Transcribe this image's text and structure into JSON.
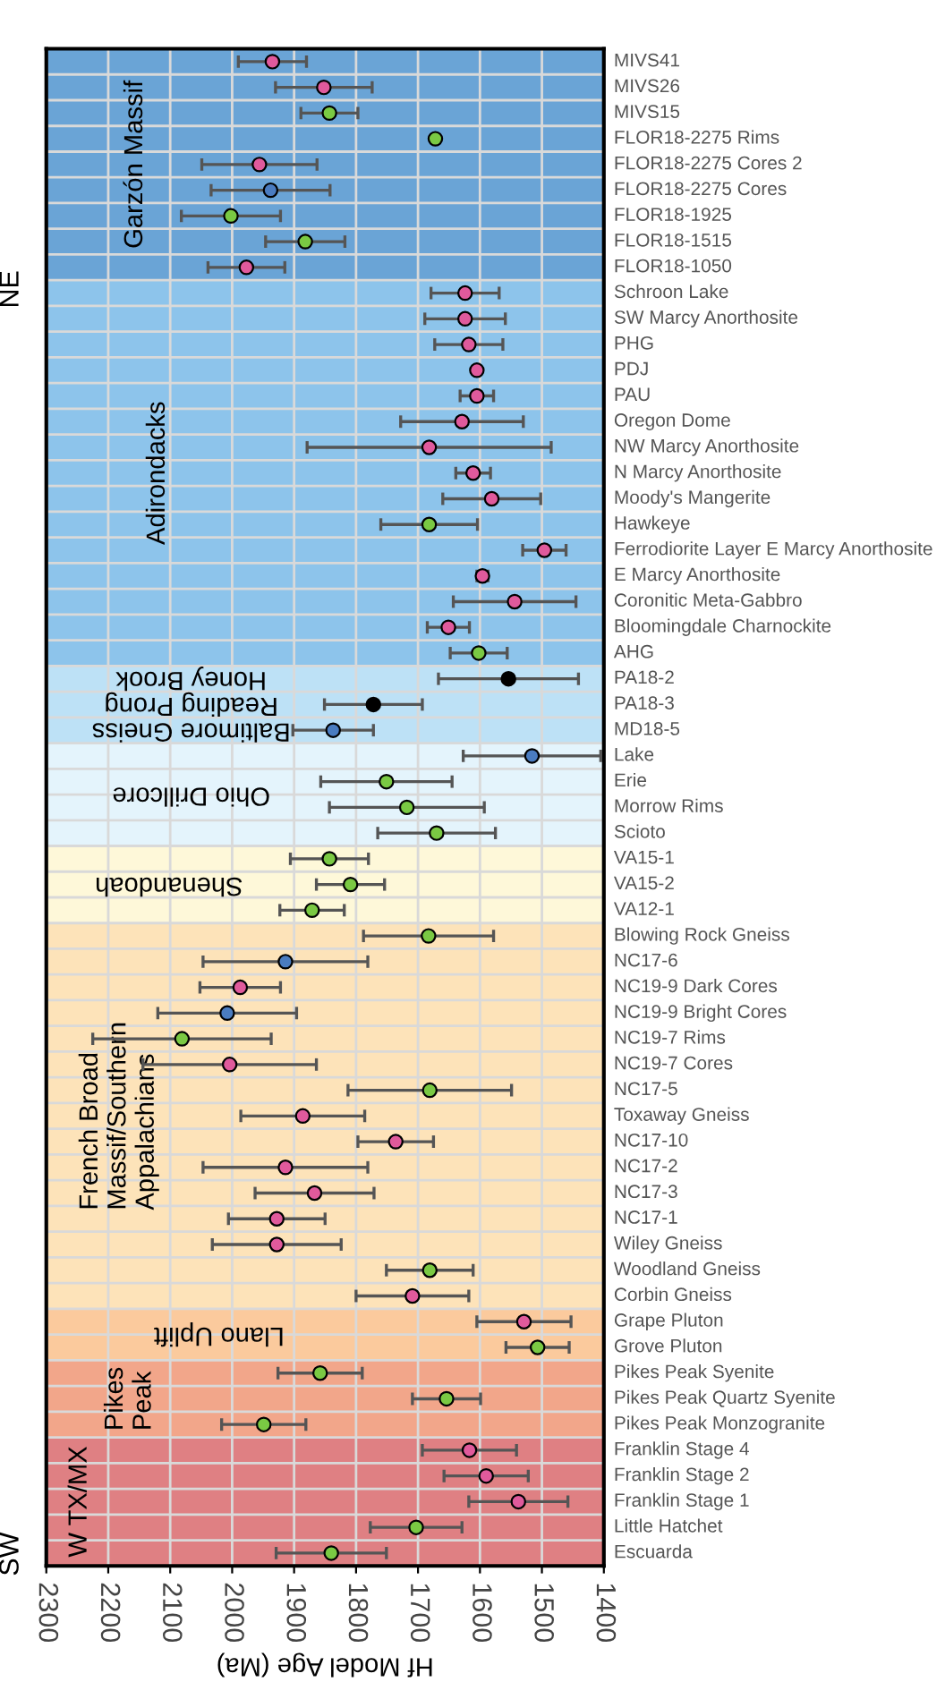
{
  "chart_data": {
    "type": "scatter",
    "orientation": "horizontal",
    "xlabel": "Hf Model Age (Ma)",
    "categories": [
      "MIVS41",
      "MIVS26",
      "MIVS15",
      "FLOR18-2275 Rims",
      "FLOR18-2275 Cores 2",
      "FLOR18-2275 Cores",
      "FLOR18-1925",
      "FLOR18-1515",
      "FLOR18-1050",
      "Schroon Lake",
      "SW Marcy Anorthosite",
      "PHG",
      "PDJ",
      "PAU",
      "Oregon Dome",
      "NW Marcy Anorthosite",
      "N Marcy Anorthosite",
      "Moody's Mangerite",
      "Hawkeye",
      "Ferrodiorite Layer E Marcy Anorthosite",
      "E Marcy Anorthosite",
      "Coronitic Meta-Gabbro",
      "Bloomingdale Charnockite",
      "AHG",
      "PA18-2",
      "PA18-3",
      "MD18-5",
      "Lake",
      "Erie",
      "Morrow Rims",
      "Scioto",
      "VA15-1",
      "VA15-2",
      "VA12-1",
      "Blowing Rock Gneiss",
      "NC17-6",
      "NC19-9 Dark Cores",
      "NC19-9 Bright Cores",
      "NC19-7 Rims",
      "NC19-7 Cores",
      "NC17-5",
      "Toxaway Gneiss",
      "NC17-10",
      "NC17-2",
      "NC17-3",
      "NC17-1",
      "Wiley Gneiss",
      "Woodland Gneiss",
      "Corbin Gneiss",
      "Grape Pluton",
      "Grove Pluton",
      "Pikes Peak Syenite",
      "Pikes Peak Quartz Syenite",
      "Pikes Peak Monzogranite",
      "Franklin Stage 4",
      "Franklin Stage 2",
      "Franklin Stage 1",
      "Little Hatchet",
      "Escuarda"
    ],
    "values": [
      1935,
      1852,
      1843,
      1672,
      1956,
      1938,
      2002,
      1882,
      1977,
      1624,
      1624,
      1618,
      1605,
      1605,
      1629,
      1682,
      1611,
      1581,
      1682,
      1496,
      1596,
      1544,
      1651,
      1602,
      1554,
      1772,
      1837,
      1516,
      1751,
      1718,
      1670,
      1843,
      1809,
      1871,
      1683,
      1914,
      1987,
      2008,
      2081,
      2004,
      1681,
      1886,
      1736,
      1914,
      1867,
      1928,
      1928,
      1681,
      1709,
      1529,
      1507,
      1858,
      1654,
      1949,
      1617,
      1590,
      1538,
      1703,
      1840
    ],
    "errors": [
      55,
      78,
      46,
      null,
      93,
      96,
      80,
      64,
      62,
      55,
      65,
      55,
      null,
      27,
      99,
      197,
      28,
      79,
      78,
      35,
      9,
      99,
      34,
      46,
      113,
      79,
      65,
      111,
      106,
      125,
      95,
      63,
      55,
      52,
      105,
      133,
      65,
      112,
      144,
      140,
      132,
      100,
      61,
      133,
      96,
      78,
      104,
      70,
      91,
      76,
      51,
      68,
      55,
      68,
      76,
      68,
      80,
      74,
      89
    ],
    "colors": [
      "#e05a9c",
      "#e05a9c",
      "#7ac943",
      "#7ac943",
      "#e05a9c",
      "#4a7cc0",
      "#7ac943",
      "#7ac943",
      "#e05a9c",
      "#e05a9c",
      "#e05a9c",
      "#e05a9c",
      "#e05a9c",
      "#e05a9c",
      "#e05a9c",
      "#e05a9c",
      "#e05a9c",
      "#e05a9c",
      "#7ac943",
      "#e05a9c",
      "#e05a9c",
      "#e05a9c",
      "#e05a9c",
      "#7ac943",
      "#000000",
      "#000000",
      "#4a7cc0",
      "#4a7cc0",
      "#7ac943",
      "#7ac943",
      "#7ac943",
      "#7ac943",
      "#7ac943",
      "#7ac943",
      "#7ac943",
      "#4a7cc0",
      "#e05a9c",
      "#4a7cc0",
      "#7ac943",
      "#e05a9c",
      "#7ac943",
      "#e05a9c",
      "#e05a9c",
      "#e05a9c",
      "#e05a9c",
      "#e05a9c",
      "#e05a9c",
      "#7ac943",
      "#e05a9c",
      "#e05a9c",
      "#7ac943",
      "#7ac943",
      "#7ac943",
      "#7ac943",
      "#e05a9c",
      "#e05a9c",
      "#e05a9c",
      "#7ac943",
      "#7ac943"
    ],
    "xlim": [
      2300,
      1400
    ],
    "xticks": [
      2300,
      2200,
      2100,
      2000,
      1900,
      1800,
      1700,
      1600,
      1500,
      1400
    ],
    "marker": "circle",
    "grid": true,
    "bands": [
      {
        "axis": "y",
        "from": "MIVS41",
        "to": "FLOR18-1050",
        "label": "Garzón Massif",
        "color": "#6aa4d6"
      },
      {
        "axis": "y",
        "from": "Schroon Lake",
        "to": "AHG",
        "label": "Adirondacks",
        "color": "#8dc4eb"
      },
      {
        "axis": "y",
        "from": "PA18-2",
        "to": "PA18-2",
        "label": "Honey Brook",
        "color": "#bde1f6"
      },
      {
        "axis": "y",
        "from": "PA18-3",
        "to": "PA18-3",
        "label": "Reading Prong",
        "color": "#bde1f6"
      },
      {
        "axis": "y",
        "from": "MD18-5",
        "to": "MD18-5",
        "label": "Baltimore Gneiss",
        "color": "#bde1f6"
      },
      {
        "axis": "y",
        "from": "Lake",
        "to": "Scioto",
        "label": "Ohio Drillcore",
        "color": "#e4f4fc"
      },
      {
        "axis": "y",
        "from": "VA15-1",
        "to": "VA12-1",
        "label": "Shenandoah",
        "color": "#fef8d9"
      },
      {
        "axis": "y",
        "from": "Blowing Rock Gneiss",
        "to": "Corbin Gneiss",
        "label": "French Broad\nMassif/Southern\nAppalachians",
        "color": "#fde3b9"
      },
      {
        "axis": "y",
        "from": "Grape Pluton",
        "to": "Grove Pluton",
        "label": "Llano Uplift",
        "color": "#fbca9d"
      },
      {
        "axis": "y",
        "from": "Pikes Peak Syenite",
        "to": "Pikes Peak Monzogranite",
        "label": "Pikes\nPeak",
        "color": "#f2a68a"
      },
      {
        "axis": "y",
        "from": "Franklin Stage 4",
        "to": "Escuarda",
        "label": "W TX/MX",
        "color": "#df8083"
      }
    ],
    "annotations": [
      "NE",
      "SW"
    ]
  }
}
